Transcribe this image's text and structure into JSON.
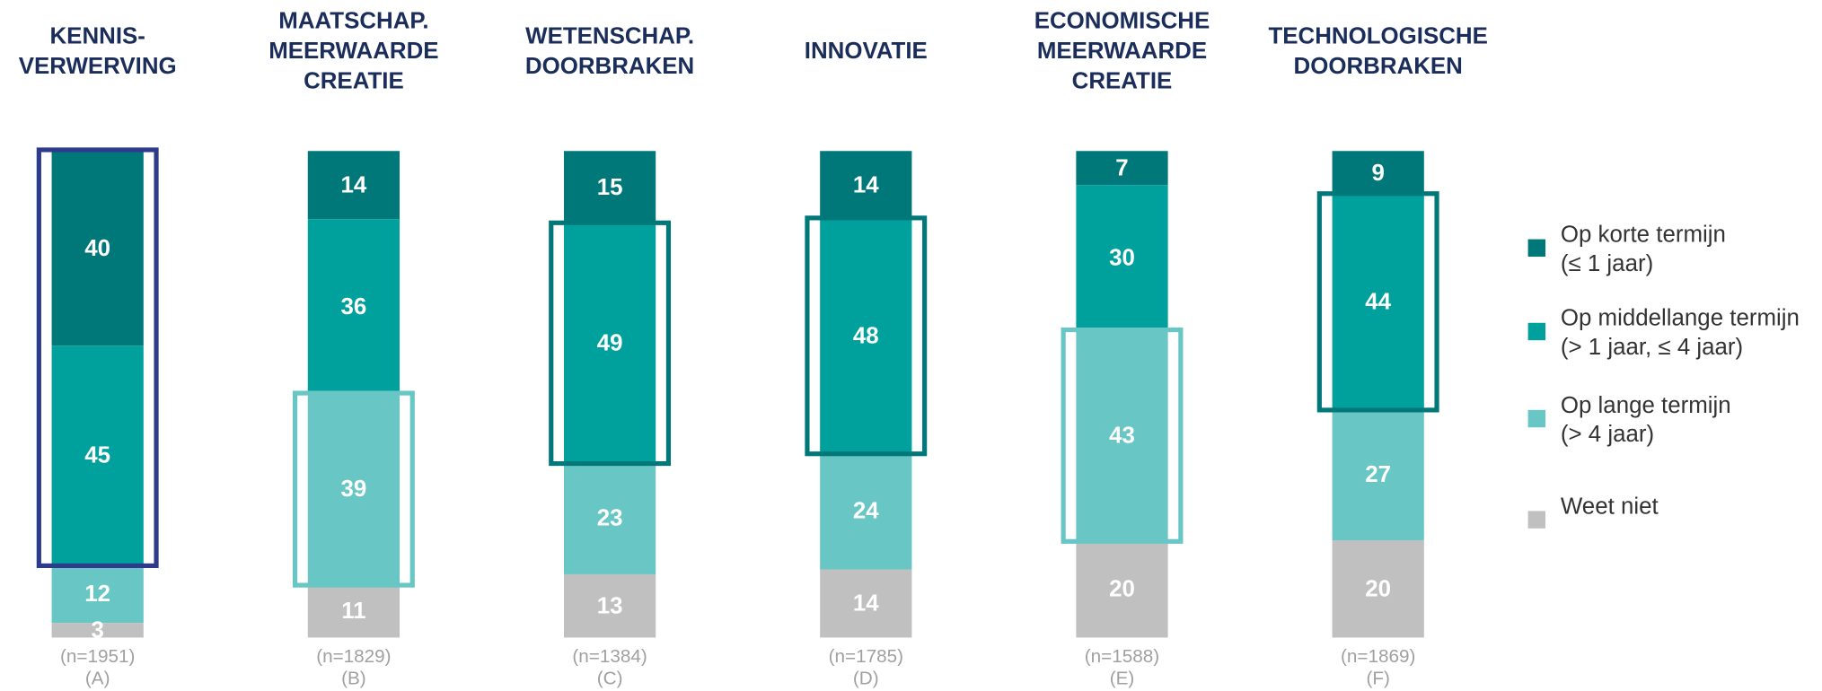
{
  "chart_data": {
    "type": "stacked-bar",
    "categories": [
      [
        "KENNIS-",
        "VERWERVING"
      ],
      [
        "MAATSCHAP.",
        "MEERWAARDE",
        "CREATIE"
      ],
      [
        "WETENSCHAP.",
        "DOORBRAKEN"
      ],
      [
        "INNOVATIE"
      ],
      [
        "ECONOMISCHE",
        "MEERWAARDE",
        "CREATIE"
      ],
      [
        "TECHNOLOGISCHE",
        "DOORBRAKEN"
      ]
    ],
    "sample_labels": [
      "(n=1951)",
      "(n=1829)",
      "(n=1384)",
      "(n=1785)",
      "(n=1588)",
      "(n=1869)"
    ],
    "letters": [
      "(A)",
      "(B)",
      "(C)",
      "(D)",
      "(E)",
      "(F)"
    ],
    "series": [
      {
        "name": "Op korte termijn",
        "name_detail": "(≤ 1 jaar)",
        "color": "#00787a",
        "values": [
          40,
          14,
          15,
          14,
          7,
          9
        ]
      },
      {
        "name": "Op middellange termijn",
        "name_detail": "(> 1 jaar, ≤ 4 jaar)",
        "color": "#00a09c",
        "values": [
          45,
          36,
          49,
          48,
          30,
          44
        ]
      },
      {
        "name": "Op lange termijn",
        "name_detail": "(> 4 jaar)",
        "color": "#68c6c5",
        "values": [
          12,
          39,
          23,
          24,
          43,
          27
        ]
      },
      {
        "name": "Weet niet",
        "color": "#c0c0c0",
        "values": [
          3,
          11,
          13,
          14,
          20,
          20
        ]
      }
    ],
    "highlights": [
      {
        "series": [
          0,
          1
        ],
        "color": "#2e3a8c"
      },
      {
        "series": [
          2
        ],
        "color": "#68c6c5"
      },
      {
        "series": [
          1
        ],
        "color": "#00787a"
      },
      {
        "series": [
          1
        ],
        "color": "#00787a"
      },
      {
        "series": [
          2
        ],
        "color": "#68c6c5"
      },
      {
        "series": [
          1
        ],
        "color": "#00787a"
      }
    ],
    "ylim": [
      0,
      100
    ]
  }
}
